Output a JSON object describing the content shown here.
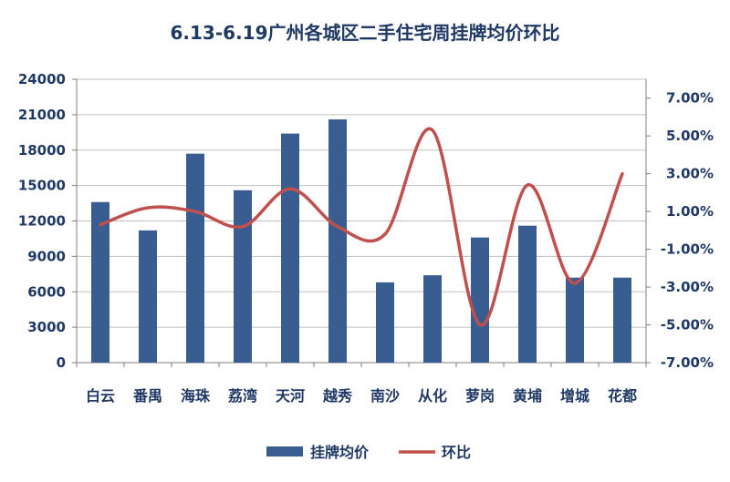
{
  "chart_data": {
    "type": "bar",
    "title": "6.13-6.19广州各城区二手住宅周挂牌均价环比",
    "categories": [
      "白云",
      "番禺",
      "海珠",
      "荔湾",
      "天河",
      "越秀",
      "南沙",
      "从化",
      "萝岗",
      "黄埔",
      "增城",
      "花都"
    ],
    "series": [
      {
        "name": "挂牌均价",
        "type": "bar",
        "axis": "left",
        "color": "#3a5d91",
        "values": [
          13600,
          11200,
          17700,
          14600,
          19400,
          20600,
          6800,
          7400,
          10600,
          11600,
          7200,
          7200
        ]
      },
      {
        "name": "环比",
        "type": "line",
        "axis": "right",
        "color": "#c0504d",
        "values": [
          0.3,
          1.2,
          1.0,
          0.2,
          2.2,
          0.2,
          -0.2,
          5.3,
          -5.0,
          2.4,
          -2.8,
          3.0
        ]
      }
    ],
    "y_left": {
      "range": [
        0,
        24000
      ],
      "ticks": [
        "0",
        "3000",
        "6000",
        "9000",
        "12000",
        "15000",
        "18000",
        "21000",
        "24000"
      ]
    },
    "y_right": {
      "range": [
        -7,
        8
      ],
      "ticks": [
        "-7.00%",
        "-5.00%",
        "-3.00%",
        "-1.00%",
        "1.00%",
        "3.00%",
        "5.00%",
        "7.00%"
      ]
    },
    "grid": true,
    "legend": {
      "position": "bottom",
      "items": [
        {
          "label": "挂牌均价",
          "symbol": "bar"
        },
        {
          "label": "环比",
          "symbol": "line"
        }
      ]
    }
  }
}
